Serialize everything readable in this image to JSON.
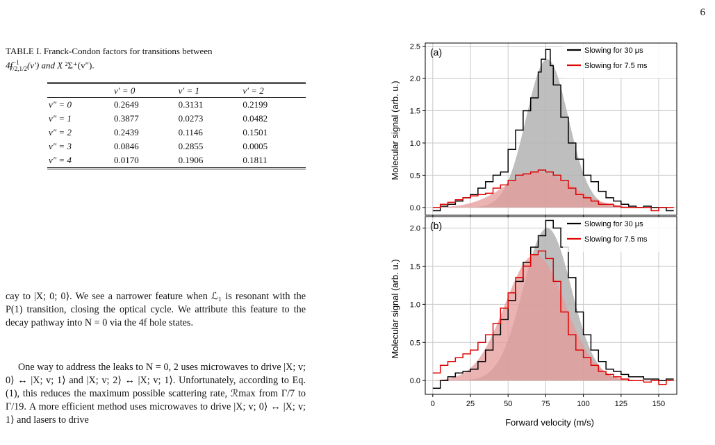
{
  "page": {
    "number": "6"
  },
  "table": {
    "caption_prefix": "TABLE I. Franck-Condon factors for transitions between",
    "caption_line2_a": "4f",
    "caption_sup": "−1",
    "caption_sub": "7/2,1/2",
    "caption_line2_b": "(v′) and X",
    "caption_line2_c": "²Σ⁺(v″).",
    "columns": [
      "",
      "v′ = 0",
      "v′ = 1",
      "v′ = 2"
    ],
    "rows": [
      {
        "label": "v″ = 0",
        "values": [
          "0.2649",
          "0.3131",
          "0.2199"
        ]
      },
      {
        "label": "v″ = 1",
        "values": [
          "0.3877",
          "0.0273",
          "0.0482"
        ]
      },
      {
        "label": "v″ = 2",
        "values": [
          "0.2439",
          "0.1146",
          "0.1501"
        ]
      },
      {
        "label": "v″ = 3",
        "values": [
          "0.0846",
          "0.2855",
          "0.0005"
        ]
      },
      {
        "label": "v″ = 4",
        "values": [
          "0.0170",
          "0.1906",
          "0.1811"
        ]
      }
    ]
  },
  "text": {
    "p1": "cay to |X; 0; 0⟩. We see a narrower feature when ℒ₁ is resonant with the P(1) transition, closing the optical cycle. We attribute this feature to the decay pathway into N = 0 via the 4f hole states.",
    "p2": "One way to address the leaks to N = 0, 2 uses microwaves to drive |X; v; 0⟩ ↔ |X; v; 1⟩ and |X; v; 2⟩ ↔ |X; v; 1⟩. Unfortunately, according to Eq. (1), this reduces the maximum possible scattering rate, ℛmax from Γ/7 to Γ/19. A more efficient method uses microwaves to drive |X; v; 0⟩ ↔ |X; v; 1⟩ and lasers to drive"
  },
  "figure": {
    "xlabel": "Forward velocity (m/s)",
    "ylabel": "Molecular signal (arb. u.)",
    "legend": [
      "Slowing for 30 μs",
      "Slowing for 7.5 ms"
    ],
    "colors": {
      "black_series": "#000000",
      "red_series": "#e00000",
      "gray_fill": "#b3b3b3",
      "red_fill": "#e69a9a"
    }
  },
  "chart_data": [
    {
      "type": "line",
      "panel_label": "(a)",
      "xlabel": "",
      "ylabel": "Molecular signal (arb. u.)",
      "xlim": [
        -5,
        162
      ],
      "ylim": [
        -0.12,
        2.55
      ],
      "xticks": [
        0,
        25,
        50,
        75,
        100,
        125,
        150
      ],
      "yticks": [
        0.0,
        0.5,
        1.0,
        1.5,
        2.0,
        2.5
      ],
      "ytick_labels": [
        "0.0",
        "0.5",
        "1.0",
        "1.5",
        "2.0",
        "2.5"
      ],
      "grid": true,
      "legend_position": "top-right",
      "series": [
        {
          "name": "Slowing for 30 μs",
          "style": "step",
          "x": [
            0,
            5,
            10,
            15,
            20,
            25,
            30,
            35,
            40,
            45,
            50,
            55,
            60,
            65,
            70,
            72,
            75,
            78,
            80,
            85,
            90,
            95,
            100,
            105,
            110,
            115,
            120,
            125,
            130,
            135,
            140,
            145,
            150,
            155
          ],
          "y": [
            -0.05,
            0.02,
            0.05,
            0.1,
            0.15,
            0.2,
            0.3,
            0.4,
            0.5,
            0.55,
            0.9,
            1.2,
            1.5,
            1.7,
            2.1,
            2.3,
            2.45,
            2.2,
            1.9,
            1.4,
            1.0,
            0.75,
            0.5,
            0.4,
            0.25,
            0.15,
            0.1,
            0.05,
            0.02,
            0.0,
            0.02,
            0.0,
            0.0,
            -0.05
          ]
        },
        {
          "name": "Slowing for 7.5 ms",
          "style": "step",
          "x": [
            0,
            5,
            10,
            15,
            20,
            25,
            30,
            35,
            40,
            45,
            50,
            55,
            60,
            65,
            70,
            75,
            80,
            85,
            90,
            95,
            100,
            105,
            110,
            115,
            120,
            125,
            130,
            135,
            140,
            145,
            150,
            155
          ],
          "y": [
            0.0,
            0.05,
            0.08,
            0.12,
            0.15,
            0.18,
            0.2,
            0.22,
            0.3,
            0.35,
            0.42,
            0.5,
            0.52,
            0.55,
            0.58,
            0.55,
            0.5,
            0.42,
            0.3,
            0.2,
            0.15,
            0.1,
            0.05,
            0.05,
            0.02,
            0.0,
            0.0,
            0.0,
            0.0,
            -0.05,
            0.0,
            0.0
          ]
        }
      ],
      "fits": [
        {
          "for": "Slowing for 30 μs",
          "color": "gray",
          "peak": 2.3,
          "center": 76,
          "sigma": 14
        },
        {
          "for": "Slowing for 7.5 ms",
          "color": "red",
          "peak": 0.55,
          "center": 70,
          "sigma": 22
        }
      ]
    },
    {
      "type": "line",
      "panel_label": "(b)",
      "xlabel": "Forward velocity (m/s)",
      "ylabel": "Molecular signal (arb. u.)",
      "xlim": [
        -5,
        162
      ],
      "ylim": [
        -0.18,
        2.15
      ],
      "xticks": [
        0,
        25,
        50,
        75,
        100,
        125,
        150
      ],
      "xtick_labels": [
        "0",
        "25",
        "50",
        "75",
        "100",
        "125",
        "150"
      ],
      "yticks": [
        0.0,
        0.5,
        1.0,
        1.5,
        2.0
      ],
      "ytick_labels": [
        "0.0",
        "0.5",
        "1.0",
        "1.5",
        "2.0"
      ],
      "grid": true,
      "legend_position": "top-right",
      "series": [
        {
          "name": "Slowing for 30 μs",
          "style": "step",
          "x": [
            0,
            5,
            10,
            15,
            20,
            25,
            30,
            35,
            40,
            45,
            50,
            55,
            60,
            65,
            70,
            75,
            80,
            85,
            90,
            95,
            100,
            105,
            110,
            115,
            120,
            125,
            130,
            135,
            140,
            145,
            150,
            155
          ],
          "y": [
            -0.1,
            0.0,
            0.05,
            0.1,
            0.12,
            0.15,
            0.25,
            0.4,
            0.6,
            0.8,
            1.05,
            1.3,
            1.55,
            1.75,
            1.9,
            2.1,
            2.0,
            1.75,
            1.35,
            0.9,
            0.6,
            0.4,
            0.25,
            0.15,
            0.12,
            0.08,
            0.05,
            0.05,
            0.02,
            0.02,
            0.0,
            0.02
          ]
        },
        {
          "name": "Slowing for 7.5 ms",
          "style": "step",
          "x": [
            0,
            5,
            10,
            15,
            20,
            25,
            30,
            35,
            40,
            45,
            50,
            55,
            60,
            65,
            70,
            75,
            80,
            85,
            90,
            95,
            100,
            105,
            110,
            115,
            120,
            125,
            130,
            135,
            140,
            145,
            150,
            155
          ],
          "y": [
            0.1,
            0.2,
            0.25,
            0.3,
            0.35,
            0.4,
            0.5,
            0.6,
            0.75,
            0.95,
            1.15,
            1.35,
            1.5,
            1.65,
            1.7,
            1.6,
            1.3,
            0.9,
            0.6,
            0.4,
            0.3,
            0.2,
            0.12,
            0.08,
            0.05,
            0.02,
            0.0,
            0.0,
            -0.02,
            0.0,
            -0.05,
            0.0
          ]
        }
      ],
      "fits": [
        {
          "for": "Slowing for 30 μs",
          "color": "gray",
          "peak": 2.0,
          "center": 76,
          "sigma": 16
        },
        {
          "for": "Slowing for 7.5 ms",
          "color": "red",
          "peak": 1.65,
          "center": 68,
          "sigma": 20
        }
      ]
    }
  ]
}
